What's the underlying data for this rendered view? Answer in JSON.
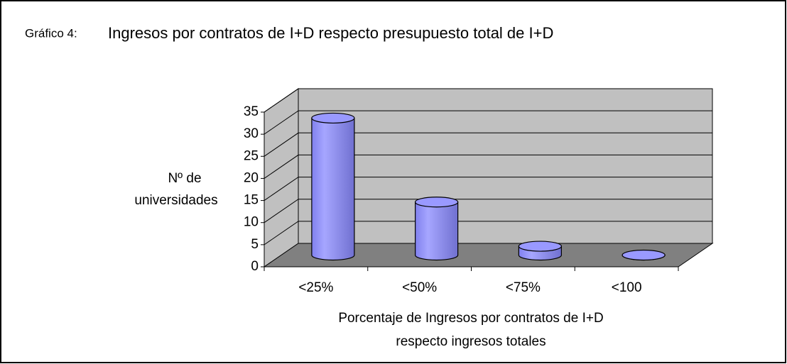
{
  "chart_data": {
    "type": "bar3d",
    "figure_label": "Gráfico 4:",
    "title": "Ingresos por contratos de I+D respecto presupuesto total de I+D",
    "ylabel": [
      "Nº de",
      "universidades"
    ],
    "xlabel": [
      "Porcentaje de Ingresos por contratos de I+D",
      "respecto ingresos totales"
    ],
    "categories": [
      "<25%",
      "<50%",
      "<75%",
      "<100"
    ],
    "values": [
      31,
      12,
      2,
      0
    ],
    "color": "#9999ff",
    "ylim": [
      0,
      35
    ],
    "yticks": [
      0,
      5,
      10,
      15,
      20,
      25,
      30,
      35
    ],
    "grid": true
  }
}
